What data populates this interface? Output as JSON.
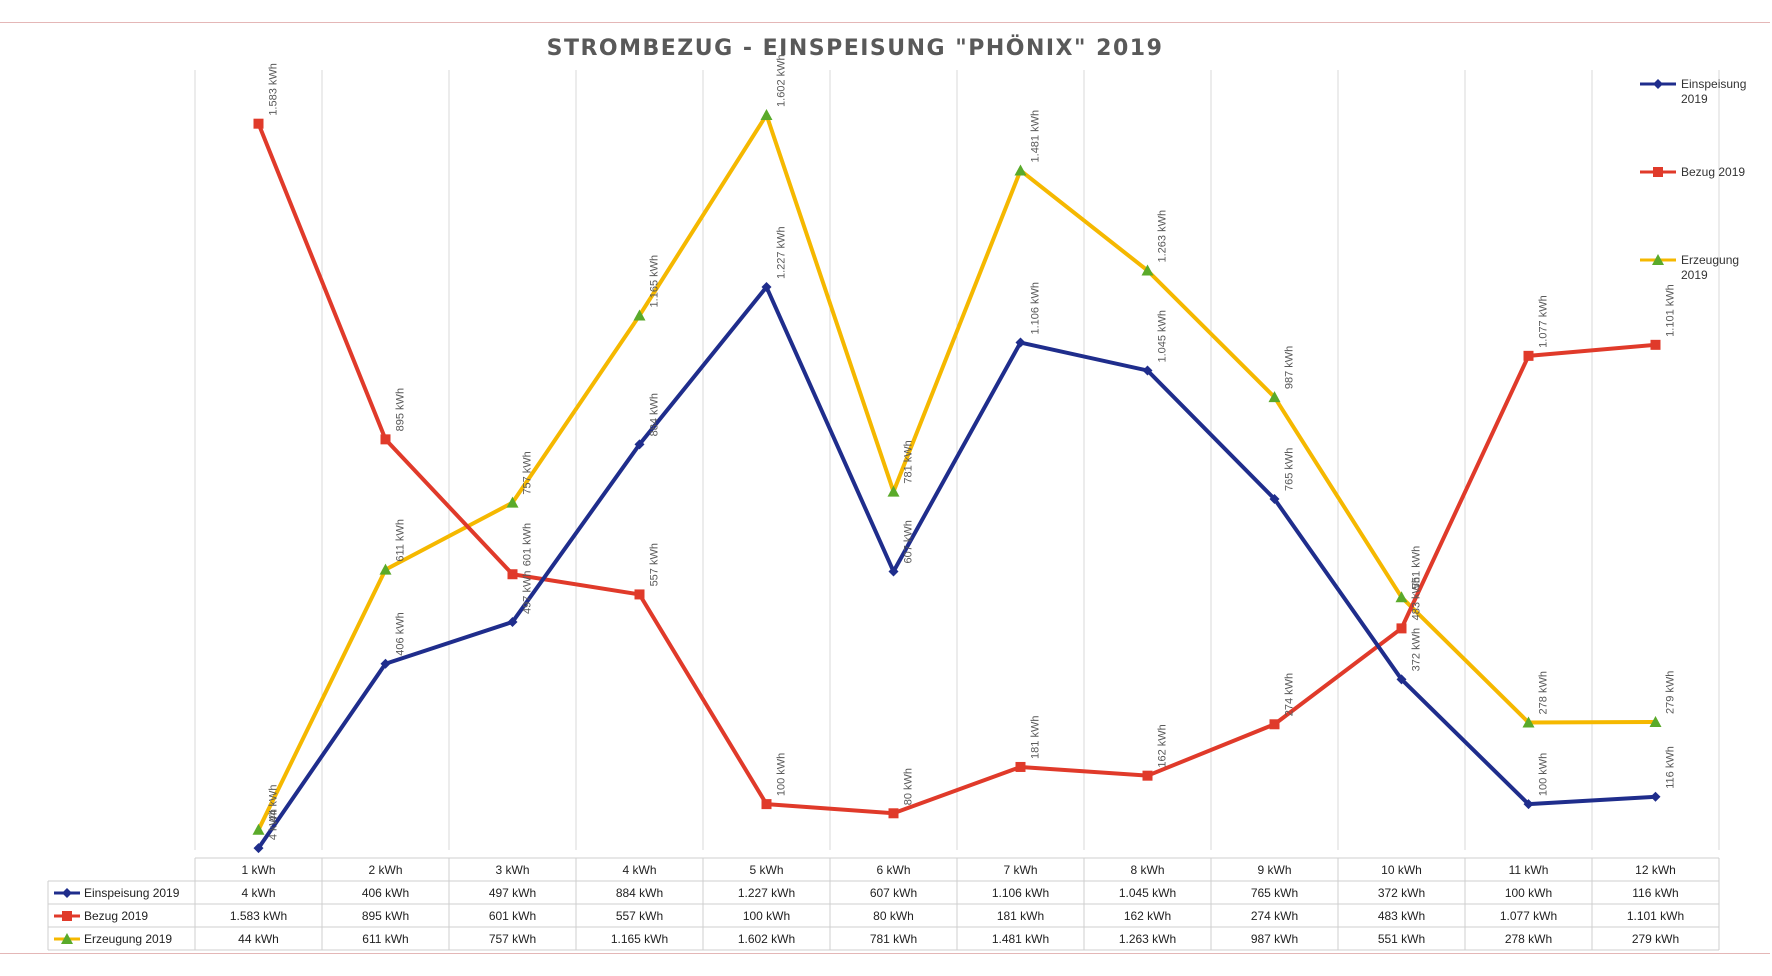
{
  "chart_data": {
    "type": "line",
    "title": "STROMBEZUG - EINSPEISUNG \"PHÖNIX\" 2019",
    "categories": [
      "1 kWh",
      "2 kWh",
      "3 kWh",
      "4 kWh",
      "5 kWh",
      "6 kWh",
      "7 kWh",
      "8 kWh",
      "9 kWh",
      "10 kWh",
      "11 kWh",
      "12 kWh"
    ],
    "ylim": [
      0,
      1700
    ],
    "grid": "vertical",
    "legend": "right",
    "series": [
      {
        "name": "Einspeisung 2019",
        "legend_label": [
          "Einspeisung",
          "2019"
        ],
        "color": "#1f2d8c",
        "marker": "diamond",
        "values": [
          4,
          406,
          497,
          884,
          1227,
          607,
          1106,
          1045,
          765,
          372,
          100,
          116
        ],
        "labels": [
          "4 kWh",
          "406 kWh",
          "497 kWh",
          "884 kWh",
          "1.227 kWh",
          "607 kWh",
          "1.106 kWh",
          "1.045 kWh",
          "765 kWh",
          "372 kWh",
          "100 kWh",
          "116 kWh"
        ]
      },
      {
        "name": "Bezug 2019",
        "legend_label": [
          "Bezug 2019"
        ],
        "color": "#e03a2a",
        "marker": "square",
        "values": [
          1583,
          895,
          601,
          557,
          100,
          80,
          181,
          162,
          274,
          483,
          1077,
          1101
        ],
        "labels": [
          "1.583 kWh",
          "895 kWh",
          "601 kWh",
          "557 kWh",
          "100 kWh",
          "80 kWh",
          "181 kWh",
          "162 kWh",
          "274 kWh",
          "483 kWh",
          "1.077 kWh",
          "1.101 kWh"
        ]
      },
      {
        "name": "Erzeugung 2019",
        "legend_label": [
          "Erzeugung",
          "2019"
        ],
        "color": "#f5b800",
        "marker_color": "#5aaa2a",
        "marker": "triangle",
        "values": [
          44,
          611,
          757,
          1165,
          1602,
          781,
          1481,
          1263,
          987,
          551,
          278,
          279
        ],
        "labels": [
          "44 kWh",
          "611 kWh",
          "757 kWh",
          "1.165 kWh",
          "1.602 kWh",
          "781 kWh",
          "1.481 kWh",
          "1.263 kWh",
          "987 kWh",
          "551 kWh",
          "278 kWh",
          "279 kWh"
        ]
      }
    ]
  }
}
